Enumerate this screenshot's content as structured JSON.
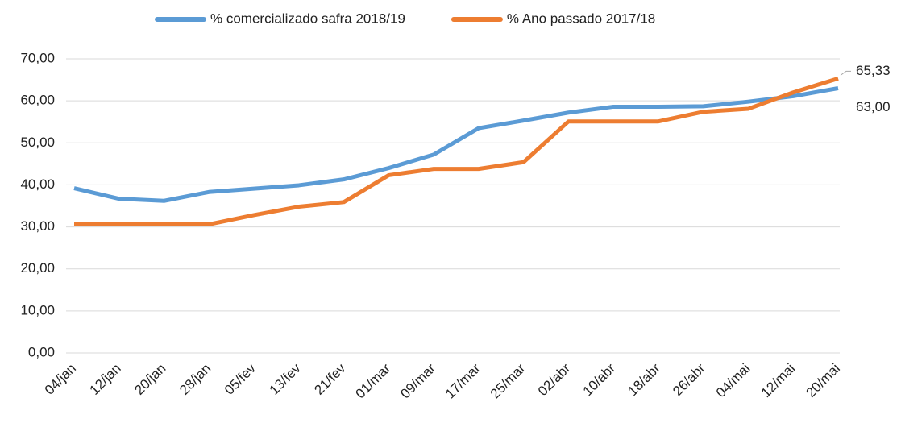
{
  "chart_data": {
    "type": "line",
    "categories": [
      "04/jan",
      "12/jan",
      "20/jan",
      "28/jan",
      "05/fev",
      "13/fev",
      "21/fev",
      "01/mar",
      "09/mar",
      "17/mar",
      "25/mar",
      "02/abr",
      "10/abr",
      "18/abr",
      "26/abr",
      "04/mai",
      "12/mai",
      "20/mai"
    ],
    "series": [
      {
        "name": "% comercializado safra 2018/19",
        "color": "#5b9bd5",
        "values": [
          39.2,
          36.7,
          36.2,
          38.3,
          39.1,
          39.9,
          41.3,
          44.0,
          47.2,
          53.5,
          55.3,
          57.2,
          58.6,
          58.6,
          58.7,
          59.8,
          61.1,
          63.0
        ],
        "value_labels": [
          null,
          null,
          null,
          null,
          null,
          null,
          null,
          null,
          null,
          null,
          null,
          null,
          null,
          null,
          null,
          null,
          null,
          "63,00"
        ]
      },
      {
        "name": "% Ano passado 2017/18",
        "color": "#ed7d31",
        "values": [
          30.7,
          30.6,
          30.6,
          30.6,
          32.8,
          34.8,
          35.9,
          42.3,
          43.8,
          43.8,
          45.4,
          55.1,
          55.1,
          55.1,
          57.4,
          58.1,
          62.0,
          65.33
        ],
        "value_labels": [
          null,
          null,
          null,
          null,
          null,
          null,
          null,
          null,
          null,
          null,
          null,
          null,
          null,
          null,
          null,
          null,
          null,
          "65,33"
        ]
      }
    ],
    "ylim": [
      0,
      70
    ],
    "yticks": [
      {
        "value": 0,
        "label": "0,00"
      },
      {
        "value": 10,
        "label": "10,00"
      },
      {
        "value": 20,
        "label": "20,00"
      },
      {
        "value": 30,
        "label": "30,00"
      },
      {
        "value": 40,
        "label": "40,00"
      },
      {
        "value": 50,
        "label": "50,00"
      },
      {
        "value": 60,
        "label": "60,00"
      },
      {
        "value": 70,
        "label": "70,00"
      }
    ],
    "grid": true,
    "legend": "top"
  }
}
